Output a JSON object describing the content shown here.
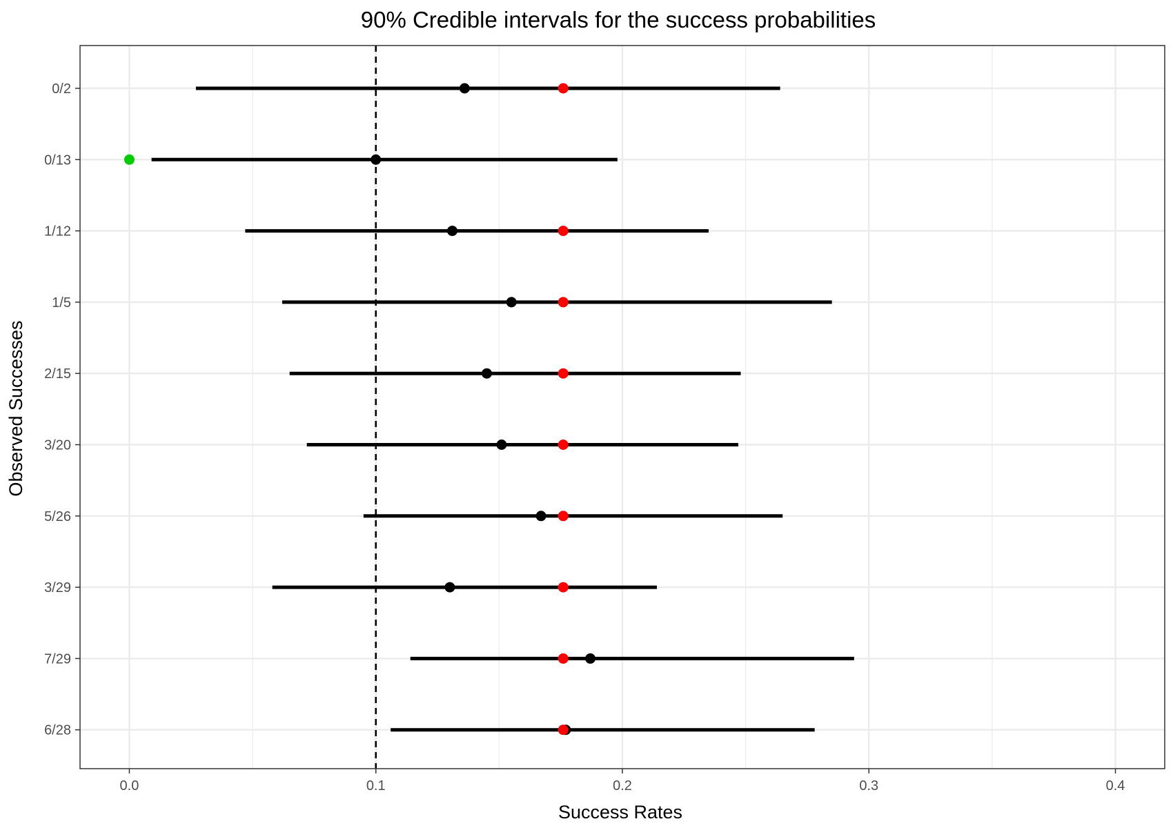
{
  "chart_data": {
    "type": "scatter",
    "title": "90% Credible intervals for the success probabilities",
    "xlabel": "Success Rates",
    "ylabel": "Observed Successes",
    "xlim": [
      -0.02,
      0.42
    ],
    "x_ticks": [
      0.0,
      0.1,
      0.2,
      0.3,
      0.4
    ],
    "x_tick_labels": [
      "0.0",
      "0.1",
      "0.2",
      "0.3",
      "0.4"
    ],
    "x_minor_ticks": [
      0.05,
      0.15,
      0.25,
      0.35
    ],
    "categories": [
      "0/2",
      "0/13",
      "1/12",
      "1/5",
      "2/15",
      "3/20",
      "5/26",
      "3/29",
      "7/29",
      "6/28"
    ],
    "interval_lower": [
      0.027,
      0.009,
      0.047,
      0.062,
      0.065,
      0.072,
      0.095,
      0.058,
      0.114,
      0.106
    ],
    "interval_upper": [
      0.264,
      0.198,
      0.235,
      0.285,
      0.248,
      0.247,
      0.265,
      0.214,
      0.294,
      0.278
    ],
    "posterior_estimate": [
      0.136,
      0.1,
      0.131,
      0.155,
      0.145,
      0.151,
      0.167,
      0.13,
      0.187,
      0.177
    ],
    "pooled_estimate": [
      0.176,
      null,
      0.176,
      0.176,
      0.176,
      0.176,
      0.176,
      0.176,
      0.176,
      0.176
    ],
    "observed_zero_rate": [
      null,
      0.0,
      null,
      null,
      null,
      null,
      null,
      null,
      null,
      null
    ],
    "reference_line_x": 0.1,
    "grid": true,
    "colors": {
      "interval": "#000000",
      "posterior_estimate": "#000000",
      "pooled_estimate": "#ff0000",
      "observed_zero_rate": "#00cd00",
      "reference_line": "#000000",
      "grid": "#ebebeb",
      "panel_border": "#333333",
      "tick_label": "#4d4d4d"
    }
  }
}
